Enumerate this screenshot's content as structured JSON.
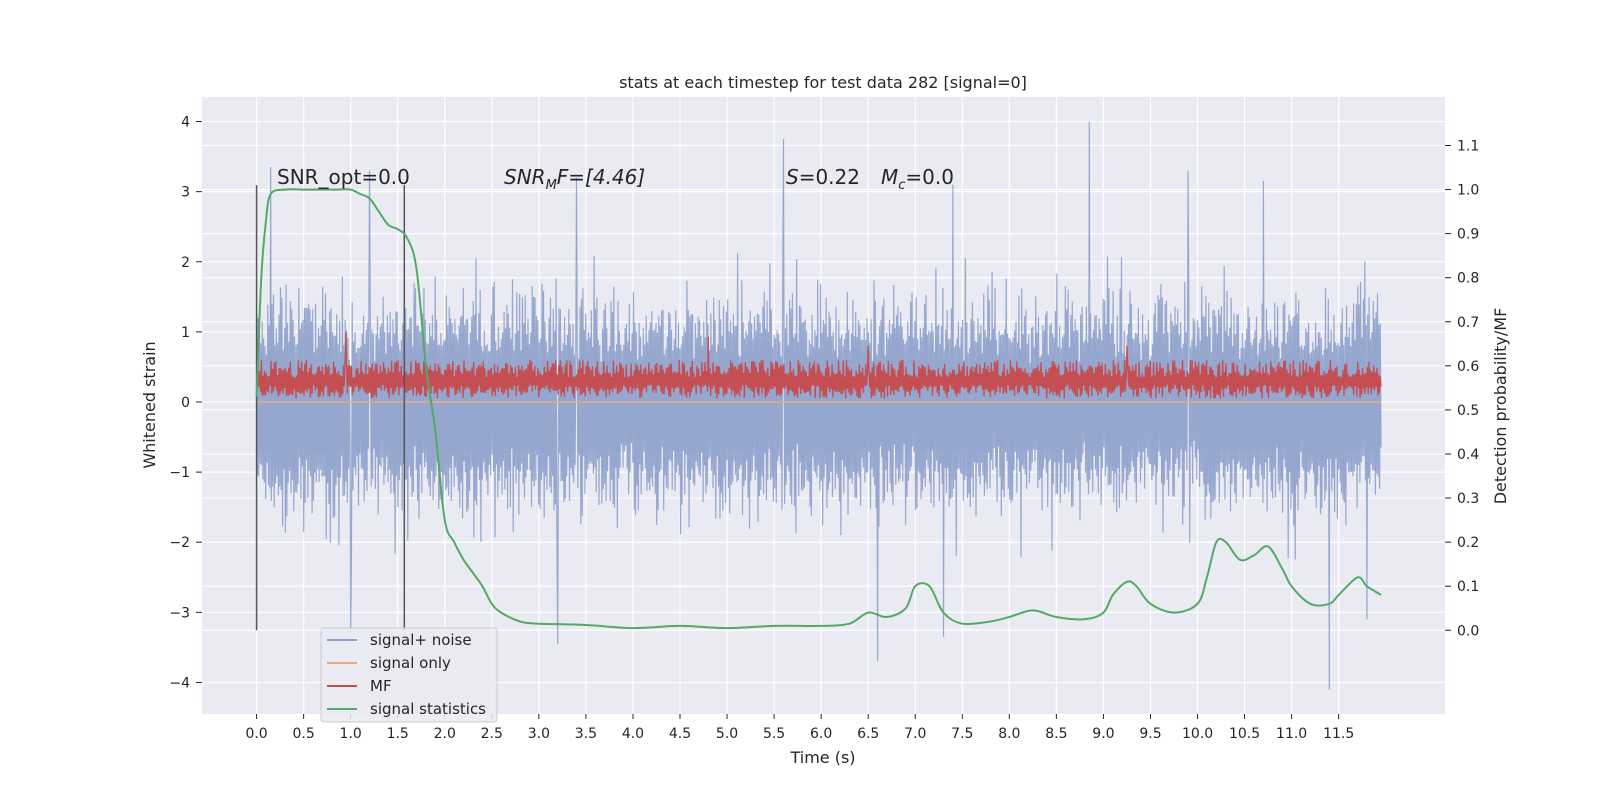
{
  "chart_data": {
    "type": "line",
    "title": "stats at each timestep for test data 282 [signal=0]",
    "xlabel": "Time (s)",
    "ylabel": "Whitened strain",
    "y2label": "Detection probability/MF",
    "xlim": [
      -0.58,
      12.63
    ],
    "ylim": [
      -4.45,
      4.35
    ],
    "y2lim": [
      -0.19,
      1.21
    ],
    "x_ticks": [
      0.0,
      0.5,
      1.0,
      1.5,
      2.0,
      2.5,
      3.0,
      3.5,
      4.0,
      4.5,
      5.0,
      5.5,
      6.0,
      6.5,
      7.0,
      7.5,
      8.0,
      8.5,
      9.0,
      9.5,
      10.0,
      10.5,
      11.0,
      11.5
    ],
    "x_tick_labels": [
      "0.0",
      "0.5",
      "1.0",
      "1.5",
      "2.0",
      "2.5",
      "3.0",
      "3.5",
      "4.0",
      "4.5",
      "5.0",
      "5.5",
      "6.0",
      "6.5",
      "7.0",
      "7.5",
      "8.0",
      "8.5",
      "9.0",
      "9.5",
      "10.0",
      "10.5",
      "11.0",
      "11.5"
    ],
    "y_ticks": [
      -4,
      -3,
      -2,
      -1,
      0,
      1,
      2,
      3,
      4
    ],
    "y_tick_labels": [
      "−4",
      "−3",
      "−2",
      "−1",
      "0",
      "1",
      "2",
      "3",
      "4"
    ],
    "y2_ticks": [
      0.0,
      0.1,
      0.2,
      0.3,
      0.4,
      0.5,
      0.6,
      0.7,
      0.8,
      0.9,
      1.0,
      1.1
    ],
    "y2_tick_labels": [
      "0.0",
      "0.1",
      "0.2",
      "0.3",
      "0.4",
      "0.5",
      "0.6",
      "0.7",
      "0.8",
      "0.9",
      "1.0",
      "1.1"
    ],
    "grid": true,
    "legend_position": "lower-left",
    "annotations": {
      "snr_opt": "SNR_opt=0.0",
      "snr_mf_a": "SNR",
      "snr_mf_sub": "M",
      "snr_mf_b": "F=[4.46]",
      "s_a": "S",
      "s_b": "=0.22",
      "mc_a": "M",
      "mc_sub": "c",
      "mc_b": "=0.0"
    },
    "vertical_lines": [
      0.0,
      1.57
    ],
    "series": [
      {
        "name": "signal+ noise",
        "axis": "left",
        "color": "#8da0cb",
        "x_range": [
          0.0,
          11.95
        ],
        "y_envelope": {
          "typical_upper": 1.8,
          "typical_lower": -1.8,
          "peak_upper": [
            [
              0.15,
              3.35
            ],
            [
              1.2,
              3.3
            ],
            [
              3.4,
              3.2
            ],
            [
              5.6,
              3.75
            ],
            [
              7.4,
              3.1
            ],
            [
              8.85,
              4.0
            ],
            [
              9.9,
              3.3
            ],
            [
              10.7,
              3.15
            ]
          ],
          "peak_lower": [
            [
              1.0,
              -3.3
            ],
            [
              3.2,
              -3.45
            ],
            [
              6.6,
              -3.7
            ],
            [
              7.3,
              -3.35
            ],
            [
              11.4,
              -4.1
            ],
            [
              11.8,
              -3.1
            ]
          ]
        }
      },
      {
        "name": "signal only",
        "axis": "left",
        "color": "#e8a88a",
        "values_description_free": true,
        "x": [
          0.0,
          11.95
        ],
        "y": [
          0.0,
          0.0
        ]
      },
      {
        "name": "MF",
        "axis": "left",
        "color": "#c44e52",
        "x_range": [
          0.0,
          11.95
        ],
        "typical_band": [
          0.05,
          0.6
        ],
        "peaks": [
          [
            0.95,
            1.0
          ],
          [
            4.8,
            0.93
          ],
          [
            6.5,
            0.8
          ],
          [
            9.25,
            0.8
          ]
        ]
      },
      {
        "name": "signal statistics",
        "axis": "right",
        "color": "#55a868",
        "x": [
          0.0,
          0.05,
          0.1,
          0.15,
          0.3,
          0.5,
          0.7,
          0.85,
          1.0,
          1.1,
          1.2,
          1.3,
          1.4,
          1.5,
          1.6,
          1.7,
          1.8,
          1.9,
          2.0,
          2.1,
          2.2,
          2.3,
          2.4,
          2.5,
          2.6,
          2.8,
          3.0,
          3.5,
          4.0,
          4.5,
          5.0,
          5.5,
          6.0,
          6.3,
          6.5,
          6.7,
          6.9,
          7.0,
          7.15,
          7.3,
          7.5,
          7.8,
          8.0,
          8.25,
          8.5,
          8.8,
          9.0,
          9.1,
          9.25,
          9.35,
          9.5,
          9.75,
          10.0,
          10.1,
          10.2,
          10.3,
          10.45,
          10.6,
          10.75,
          10.9,
          11.0,
          11.2,
          11.4,
          11.5,
          11.7,
          11.8,
          11.95
        ],
        "y": [
          0.53,
          0.8,
          0.93,
          0.99,
          1.0,
          1.0,
          1.0,
          1.0,
          1.0,
          0.99,
          0.98,
          0.95,
          0.92,
          0.91,
          0.89,
          0.82,
          0.6,
          0.45,
          0.25,
          0.2,
          0.16,
          0.13,
          0.1,
          0.06,
          0.04,
          0.02,
          0.015,
          0.012,
          0.005,
          0.01,
          0.005,
          0.01,
          0.01,
          0.015,
          0.04,
          0.03,
          0.05,
          0.1,
          0.1,
          0.04,
          0.015,
          0.02,
          0.03,
          0.045,
          0.03,
          0.025,
          0.04,
          0.08,
          0.11,
          0.1,
          0.06,
          0.04,
          0.06,
          0.12,
          0.2,
          0.2,
          0.16,
          0.17,
          0.19,
          0.14,
          0.1,
          0.06,
          0.06,
          0.08,
          0.12,
          0.1,
          0.08
        ]
      }
    ]
  }
}
